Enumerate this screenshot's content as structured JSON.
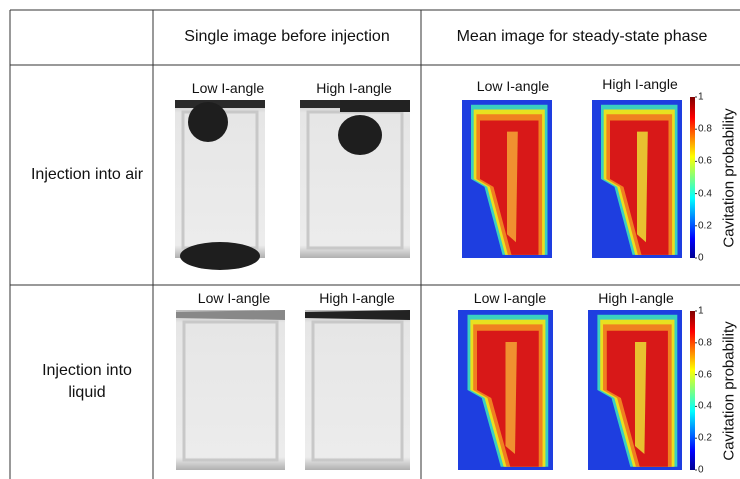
{
  "header": {
    "single": "Single image before injection",
    "mean": "Mean image for steady-state phase"
  },
  "rows": [
    {
      "label": "Injection into air",
      "single": [
        "Low I-angle",
        "High I-angle"
      ],
      "mean": [
        "Low I-angle",
        "High I-angle"
      ]
    },
    {
      "label": "Injection into liquid",
      "single": [
        "Low I-angle",
        "High I-angle"
      ],
      "mean": [
        "Low I-angle",
        "High I-angle"
      ]
    }
  ],
  "colorbar": {
    "label": "Cavitation probability",
    "ticks": [
      0,
      0.2,
      0.4,
      0.6,
      0.8,
      1
    ]
  }
}
